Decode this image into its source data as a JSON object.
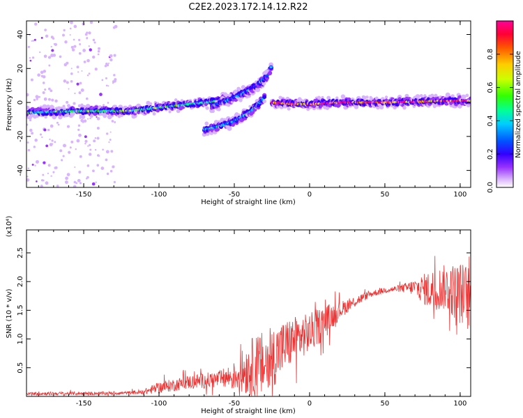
{
  "title": "C2E2.2023.172.14.12.R22",
  "chart_data": [
    {
      "type": "heatmap",
      "name": "spectrogram",
      "xlabel": "Height of straight line (km)",
      "ylabel": "Frequency (Hz)",
      "xlim": [
        -188,
        107
      ],
      "ylim": [
        -50,
        48
      ],
      "x_ticks": [
        -150,
        -100,
        -50,
        0,
        50,
        100
      ],
      "y_ticks": [
        -40,
        -20,
        0,
        20,
        40
      ],
      "colorbar": {
        "label": "Normalized spectral amplitude",
        "range": [
          0,
          1
        ],
        "ticks": [
          0.0,
          0.2,
          0.4,
          0.6,
          0.8
        ],
        "tick_labels": [
          "0.0",
          "0.2",
          "0.4",
          "0.6",
          "0.8"
        ],
        "colors": [
          "#ffffff",
          "#d9b3ff",
          "#9933ff",
          "#3300ff",
          "#0055ff",
          "#00ccff",
          "#00ff99",
          "#33ff00",
          "#ccff00",
          "#ffcc00",
          "#ff5500",
          "#ff0033",
          "#ff0099"
        ]
      },
      "ridges": [
        {
          "x": [
            -188,
            -150,
            -120,
            -100,
            -80,
            -60,
            -50,
            -40,
            -30,
            -25
          ],
          "y": [
            -6,
            -5,
            -5,
            -3,
            -1,
            1,
            4,
            7,
            12,
            22
          ],
          "strength": 0.5
        },
        {
          "x": [
            -70,
            -60,
            -50,
            -40,
            -35,
            -30
          ],
          "y": [
            -16,
            -14,
            -11,
            -6,
            -2,
            3
          ],
          "strength": 0.4
        },
        {
          "x": [
            -65,
            -55,
            -45,
            -35,
            -28
          ],
          "y": [
            -2,
            1,
            5,
            10,
            16
          ],
          "strength": 0.35
        },
        {
          "x": [
            -25,
            -10,
            0,
            20,
            50,
            70,
            90,
            107
          ],
          "y": [
            0,
            -1,
            -1,
            0,
            0,
            0.5,
            1,
            1
          ],
          "strength": 0.9
        }
      ]
    },
    {
      "type": "line",
      "name": "snr",
      "xlabel": "Height of straight line (km)",
      "ylabel": "SNR (10 * v/v)",
      "y_multiplier": "(x10⁴)",
      "xlim": [
        -188,
        107
      ],
      "ylim": [
        0,
        2.9
      ],
      "x_ticks": [
        -150,
        -100,
        -50,
        0,
        50,
        100
      ],
      "y_ticks": [
        0.5,
        1.0,
        1.5,
        2.0,
        2.5
      ],
      "y_tick_labels": [
        "0.5",
        "1.0",
        "1.5",
        "2.0",
        "2.5"
      ],
      "color": "#ee3333",
      "envelope": {
        "x": [
          -188,
          -150,
          -120,
          -110,
          -100,
          -80,
          -60,
          -50,
          -40,
          -30,
          -20,
          -10,
          0,
          10,
          20,
          30,
          40,
          50,
          60,
          70,
          80,
          90,
          100,
          107
        ],
        "y": [
          0.05,
          0.05,
          0.06,
          0.08,
          0.15,
          0.25,
          0.3,
          0.35,
          0.5,
          0.55,
          0.8,
          1.0,
          1.1,
          1.3,
          1.5,
          1.65,
          1.78,
          1.85,
          1.88,
          1.9,
          1.85,
          1.9,
          1.8,
          1.7
        ],
        "noise": [
          0.03,
          0.03,
          0.03,
          0.05,
          0.1,
          0.12,
          0.15,
          0.25,
          0.5,
          0.6,
          0.5,
          0.4,
          0.35,
          0.3,
          0.15,
          0.1,
          0.06,
          0.05,
          0.06,
          0.15,
          0.35,
          0.4,
          0.55,
          0.6
        ]
      }
    }
  ]
}
